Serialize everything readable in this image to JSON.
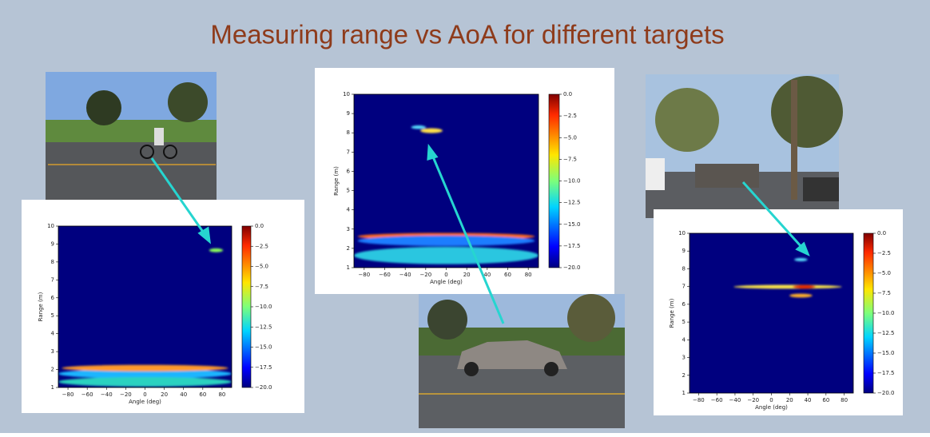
{
  "title": "Measuring range vs AoA for different targets",
  "plots": [
    {
      "xlabel": "Angle (deg)",
      "ylabel": "Range (m)",
      "xticks": [
        "−80",
        "−60",
        "−40",
        "−20",
        "0",
        "20",
        "40",
        "60",
        "80"
      ],
      "yticks": [
        "1",
        "2",
        "3",
        "4",
        "5",
        "6",
        "7",
        "8",
        "9",
        "10"
      ],
      "colorbar_ticks": [
        "0.0",
        "−2.5",
        "−5.0",
        "−7.5",
        "−10.0",
        "−12.5",
        "−15.0",
        "−17.5",
        "−20.0"
      ]
    },
    {
      "xlabel": "Angle (deg)",
      "ylabel": "Range (m)",
      "xticks": [
        "−80",
        "−60",
        "−40",
        "−20",
        "0",
        "20",
        "40",
        "60",
        "80"
      ],
      "yticks": [
        "1",
        "2",
        "3",
        "4",
        "5",
        "6",
        "7",
        "8",
        "9",
        "10"
      ],
      "colorbar_ticks": [
        "0.0",
        "−2.5",
        "−5.0",
        "−7.5",
        "−10.0",
        "−12.5",
        "−15.0",
        "−17.5",
        "−20.0"
      ]
    },
    {
      "xlabel": "Angle (deg)",
      "ylabel": "Range (m)",
      "xticks": [
        "−80",
        "−60",
        "−40",
        "−20",
        "0",
        "20",
        "40",
        "60",
        "80"
      ],
      "yticks": [
        "1",
        "2",
        "3",
        "4",
        "5",
        "6",
        "7",
        "8",
        "9",
        "10"
      ],
      "colorbar_ticks": [
        "0.0",
        "−2.5",
        "−5.0",
        "−7.5",
        "−10.0",
        "−12.5",
        "−15.0",
        "−17.5",
        "−20.0"
      ]
    }
  ]
}
